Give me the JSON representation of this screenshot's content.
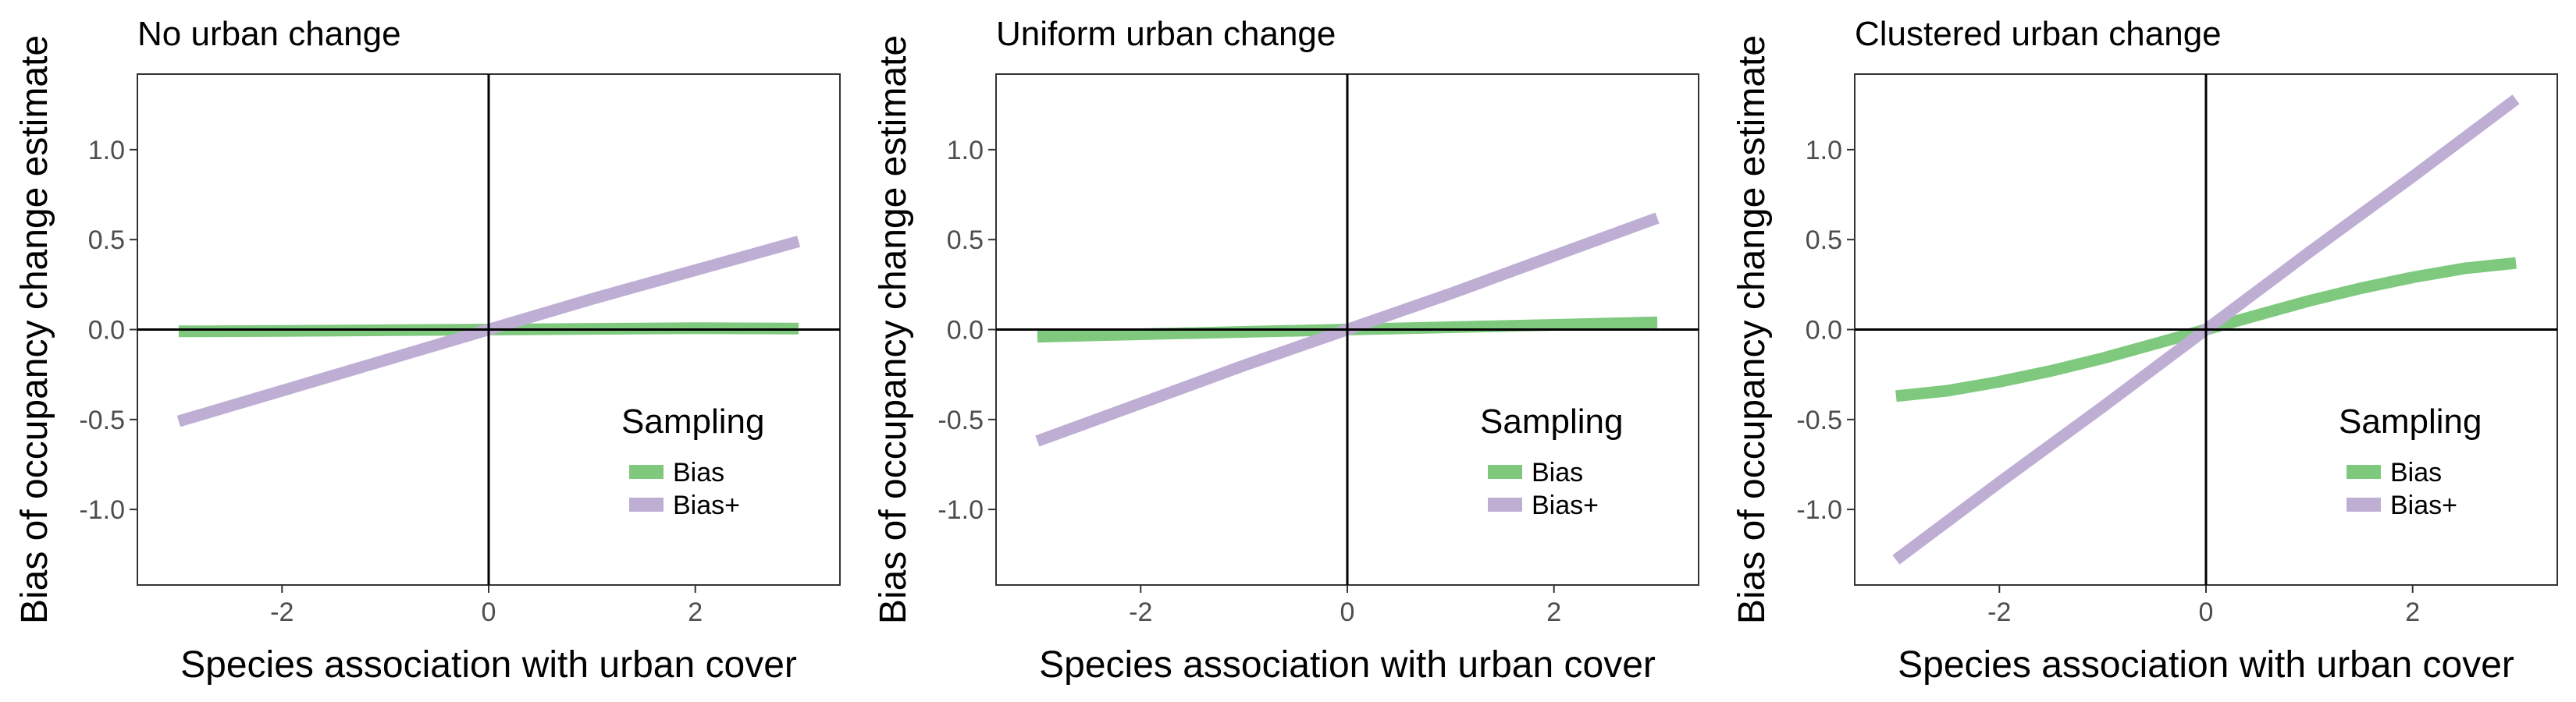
{
  "chart_data": [
    {
      "type": "line",
      "title": "No urban change",
      "xlabel": "Species association with urban cover",
      "ylabel": "Bias of occupancy change estimate",
      "xlim": [
        -3.4,
        3.4
      ],
      "ylim": [
        -1.42,
        1.42
      ],
      "x_ticks": [
        -2,
        0,
        2
      ],
      "x_tick_labels": [
        "-2",
        "0",
        "2"
      ],
      "y_ticks": [
        -1.0,
        -0.5,
        0.0,
        0.5,
        1.0
      ],
      "y_tick_labels": [
        "-1.0",
        "-0.5",
        "0.0",
        "0.5",
        "1.0"
      ],
      "grid": false,
      "reference_lines": {
        "x": 0,
        "y": 0
      },
      "legend": {
        "title": "Sampling",
        "position": "bottom-right"
      },
      "series": [
        {
          "name": "Bias",
          "color": "#7fc97f",
          "x": [
            -3,
            -2,
            -1,
            0,
            1,
            2,
            3
          ],
          "y": [
            -0.01,
            -0.008,
            -0.004,
            0.0,
            0.004,
            0.008,
            0.005
          ]
        },
        {
          "name": "Bias+",
          "color": "#beaed4",
          "x": [
            -3,
            -2,
            -1,
            0,
            1,
            2,
            3
          ],
          "y": [
            -0.51,
            -0.34,
            -0.17,
            0.0,
            0.17,
            0.33,
            0.49
          ]
        }
      ]
    },
    {
      "type": "line",
      "title": "Uniform urban change",
      "xlabel": "Species association with urban cover",
      "ylabel": "Bias of occupancy change estimate",
      "xlim": [
        -3.4,
        3.4
      ],
      "ylim": [
        -1.42,
        1.42
      ],
      "x_ticks": [
        -2,
        0,
        2
      ],
      "x_tick_labels": [
        "-2",
        "0",
        "2"
      ],
      "y_ticks": [
        -1.0,
        -0.5,
        0.0,
        0.5,
        1.0
      ],
      "y_tick_labels": [
        "-1.0",
        "-0.5",
        "0.0",
        "0.5",
        "1.0"
      ],
      "grid": false,
      "reference_lines": {
        "x": 0,
        "y": 0
      },
      "legend": {
        "title": "Sampling",
        "position": "bottom-right"
      },
      "series": [
        {
          "name": "Bias",
          "color": "#7fc97f",
          "x": [
            -3,
            -2,
            -1,
            0,
            1,
            2,
            3
          ],
          "y": [
            -0.04,
            -0.026,
            -0.013,
            0.0,
            0.013,
            0.026,
            0.04
          ]
        },
        {
          "name": "Bias+",
          "color": "#beaed4",
          "x": [
            -3,
            -2,
            -1,
            0,
            1,
            2,
            3
          ],
          "y": [
            -0.62,
            -0.41,
            -0.2,
            0.0,
            0.2,
            0.41,
            0.62
          ]
        }
      ]
    },
    {
      "type": "line",
      "title": "Clustered urban change",
      "xlabel": "Species association with urban cover",
      "ylabel": "Bias of occupancy change estimate",
      "xlim": [
        -3.4,
        3.4
      ],
      "ylim": [
        -1.42,
        1.42
      ],
      "x_ticks": [
        -2,
        0,
        2
      ],
      "x_tick_labels": [
        "-2",
        "0",
        "2"
      ],
      "y_ticks": [
        -1.0,
        -0.5,
        0.0,
        0.5,
        1.0
      ],
      "y_tick_labels": [
        "-1.0",
        "-0.5",
        "0.0",
        "0.5",
        "1.0"
      ],
      "grid": false,
      "reference_lines": {
        "x": 0,
        "y": 0
      },
      "legend": {
        "title": "Sampling",
        "position": "bottom-right"
      },
      "series": [
        {
          "name": "Bias",
          "color": "#7fc97f",
          "x": [
            -3,
            -2.5,
            -2,
            -1.5,
            -1,
            -0.5,
            0,
            0.5,
            1,
            1.5,
            2,
            2.5,
            3
          ],
          "y": [
            -0.37,
            -0.34,
            -0.29,
            -0.23,
            -0.16,
            -0.08,
            0.0,
            0.08,
            0.16,
            0.23,
            0.29,
            0.34,
            0.37
          ]
        },
        {
          "name": "Bias+",
          "color": "#beaed4",
          "x": [
            -3,
            -2,
            -1,
            0,
            1,
            2,
            3
          ],
          "y": [
            -1.28,
            -0.85,
            -0.43,
            0.0,
            0.43,
            0.85,
            1.28
          ]
        }
      ]
    }
  ]
}
